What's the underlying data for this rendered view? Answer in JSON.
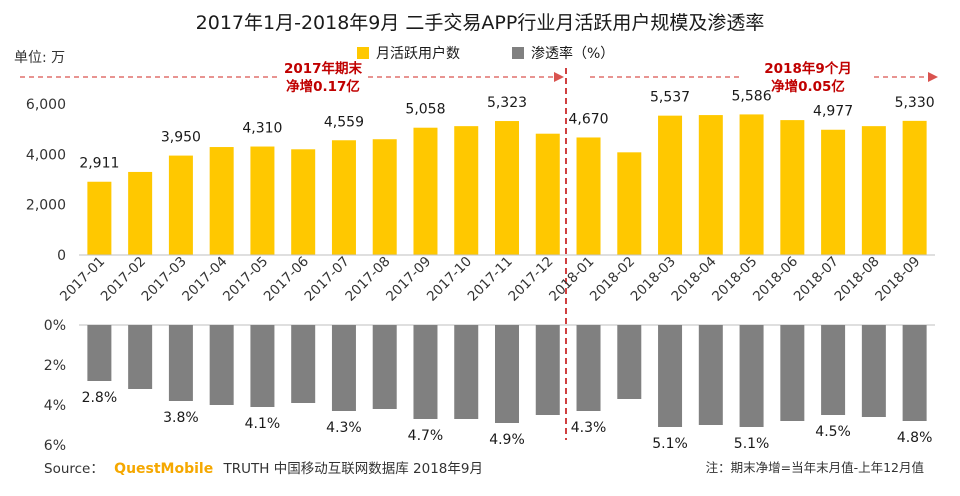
{
  "chart_data": {
    "type": "bar",
    "title": "2017年1月-2018年9月 二手交易APP行业月活跃用户规模及渗透率",
    "unit_label": "单位: 万",
    "categories": [
      "2017-01",
      "2017-02",
      "2017-03",
      "2017-04",
      "2017-05",
      "2017-06",
      "2017-07",
      "2017-08",
      "2017-09",
      "2017-10",
      "2017-11",
      "2017-12",
      "2018-01",
      "2018-02",
      "2018-03",
      "2018-04",
      "2018-05",
      "2018-06",
      "2018-07",
      "2018-08",
      "2018-09"
    ],
    "series": [
      {
        "name": "月活跃用户数",
        "values": [
          2911,
          3300,
          3950,
          4290,
          4310,
          4200,
          4559,
          4600,
          5058,
          5120,
          5323,
          4820,
          4670,
          4080,
          5537,
          5560,
          5586,
          5360,
          4977,
          5120,
          5330
        ],
        "labels": [
          "2,911",
          "",
          "3,950",
          "",
          "4,310",
          "",
          "4,559",
          "",
          "5,058",
          "",
          "5,323",
          "",
          "4,670",
          "",
          "5,537",
          "",
          "5,586",
          "",
          "4,977",
          "",
          "5,330"
        ],
        "color": "#ffc800",
        "ylim": [
          0,
          6000
        ],
        "yticks": [
          "0",
          "2,000",
          "4,000",
          "6,000"
        ]
      },
      {
        "name": "渗透率（%）",
        "values": [
          2.8,
          3.2,
          3.8,
          4.0,
          4.1,
          3.9,
          4.3,
          4.2,
          4.7,
          4.7,
          4.9,
          4.5,
          4.3,
          3.7,
          5.1,
          5.0,
          5.1,
          4.8,
          4.5,
          4.6,
          4.8
        ],
        "labels": [
          "2.8%",
          "",
          "3.8%",
          "",
          "4.1%",
          "",
          "4.3%",
          "",
          "4.7%",
          "",
          "4.9%",
          "",
          "4.3%",
          "",
          "5.1%",
          "",
          "5.1%",
          "",
          "4.5%",
          "",
          "4.8%"
        ],
        "color": "#808080",
        "ylim": [
          0,
          6
        ],
        "yticks": [
          "0%",
          "2%",
          "4%",
          "6%"
        ]
      }
    ],
    "annotations": [
      {
        "lines": [
          "2017年期末",
          "净增0.17亿"
        ]
      },
      {
        "lines": [
          "2018年9个月",
          "净增0.05亿"
        ]
      }
    ],
    "legend_position": "top-center",
    "grid": false
  },
  "footer": {
    "source_prefix": "Source：",
    "brand": "QuestMobile",
    "source_rest": "TRUTH 中国移动互联网数据库 2018年9月",
    "note": "注：期末净增=当年末月值-上年12月值"
  }
}
